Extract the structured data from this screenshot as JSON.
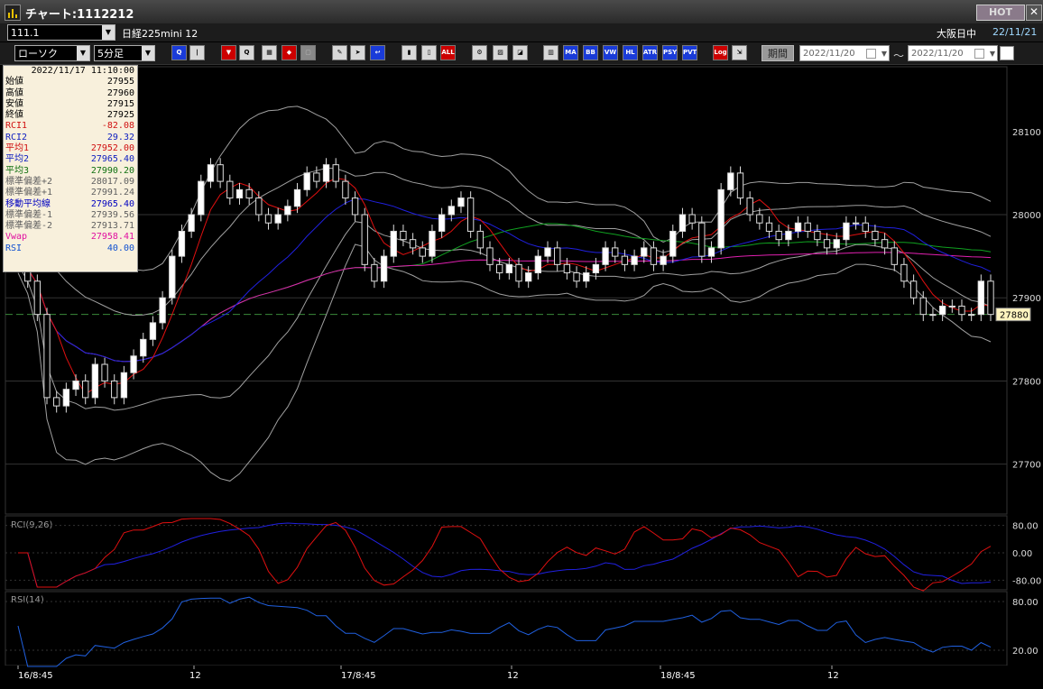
{
  "window": {
    "title": "チャート:1112212",
    "hot_label": "HOT",
    "close_label": "✕"
  },
  "header": {
    "code": "111.1",
    "instrument": "日経225mini 12",
    "session": "大阪日中",
    "date": "22/11/21",
    "chart_type": "ローソク",
    "interval": "5分足",
    "period_label": "期間",
    "date_from": "2022/11/20",
    "date_to": "2022/11/20",
    "range_sep": "〜"
  },
  "toolbar": [
    "zoom-in",
    "zoom-out",
    "pencil",
    "cursor",
    "draw",
    "bars",
    "candles",
    "ALL",
    "settings",
    "palette",
    "color",
    "indicator",
    "MA",
    "BB",
    "VWAP",
    "HL",
    "ATR",
    "PSY",
    "PVT",
    "Log",
    "export"
  ],
  "info": {
    "timestamp": "2022/11/17  11:10:00",
    "rows": [
      {
        "label": "始値",
        "value": "27955",
        "color": "#000000"
      },
      {
        "label": "高値",
        "value": "27960",
        "color": "#000000"
      },
      {
        "label": "安値",
        "value": "27915",
        "color": "#000000"
      },
      {
        "label": "終値",
        "value": "27925",
        "color": "#000000"
      },
      {
        "label": "RCI1",
        "value": "-82.08",
        "color": "#d01010"
      },
      {
        "label": "RCI2",
        "value": "29.32",
        "color": "#1020c0"
      },
      {
        "label": "平均1",
        "value": "27952.00",
        "color": "#d01010"
      },
      {
        "label": "平均2",
        "value": "27965.40",
        "color": "#1020c0"
      },
      {
        "label": "平均3",
        "value": "27990.20",
        "color": "#107010"
      },
      {
        "label": "標準偏差+2",
        "value": "28017.09",
        "color": "#606060"
      },
      {
        "label": "標準偏差+1",
        "value": "27991.24",
        "color": "#606060"
      },
      {
        "label": "移動平均線",
        "value": "27965.40",
        "color": "#0000c0"
      },
      {
        "label": "標準偏差-1",
        "value": "27939.56",
        "color": "#606060"
      },
      {
        "label": "標準偏差-2",
        "value": "27913.71",
        "color": "#606060"
      },
      {
        "label": "Vwap",
        "value": "27958.41",
        "color": "#e010a0"
      },
      {
        "label": "RSI",
        "value": "40.00",
        "color": "#1050d0"
      }
    ]
  },
  "chart_data": {
    "type": "line",
    "price_axis": {
      "ticks": [
        "28100",
        "27900",
        "27800",
        "27700"
      ],
      "mid_tick": "28000",
      "range": [
        27640,
        28180
      ]
    },
    "current_price": "27880",
    "x_labels": [
      "16/8:45",
      "12",
      "17/8:45",
      "12",
      "18/8:45",
      "12"
    ],
    "rci": {
      "title": "RCI(9,26)",
      "ticks": [
        "80.00",
        "0.00",
        "-80.00"
      ]
    },
    "rsi": {
      "title": "RSI(14)",
      "ticks": [
        "80.00",
        "20.00"
      ]
    },
    "close_series": [
      27950,
      27920,
      27880,
      27780,
      27770,
      27790,
      27800,
      27780,
      27820,
      27800,
      27780,
      27810,
      27830,
      27850,
      27870,
      27900,
      27950,
      27980,
      28000,
      28040,
      28060,
      28040,
      28020,
      28030,
      28020,
      28000,
      27990,
      28000,
      28010,
      28030,
      28050,
      28040,
      28060,
      28040,
      28020,
      28000,
      27940,
      27920,
      27950,
      27980,
      27970,
      27960,
      27950,
      27980,
      28000,
      28010,
      28020,
      27980,
      27960,
      27940,
      27930,
      27940,
      27920,
      27930,
      27950,
      27960,
      27940,
      27930,
      27920,
      27930,
      27940,
      27960,
      27950,
      27940,
      27950,
      27960,
      27940,
      27950,
      27980,
      28000,
      27990,
      27950,
      27960,
      28030,
      28050,
      28020,
      28000,
      27990,
      27980,
      27970,
      27980,
      27990,
      27980,
      27970,
      27960,
      27970,
      27990,
      27990,
      27980,
      27970,
      27960,
      27940,
      27920,
      27900,
      27880,
      27880,
      27890,
      27890,
      27880,
      27880,
      27920,
      27880
    ],
    "colors": {
      "red": "#e01010",
      "blue": "#2020e0",
      "green": "#10a020",
      "magenta": "#e020b0",
      "bands": "#a0a0a0",
      "rsi": "#2060e0"
    }
  }
}
